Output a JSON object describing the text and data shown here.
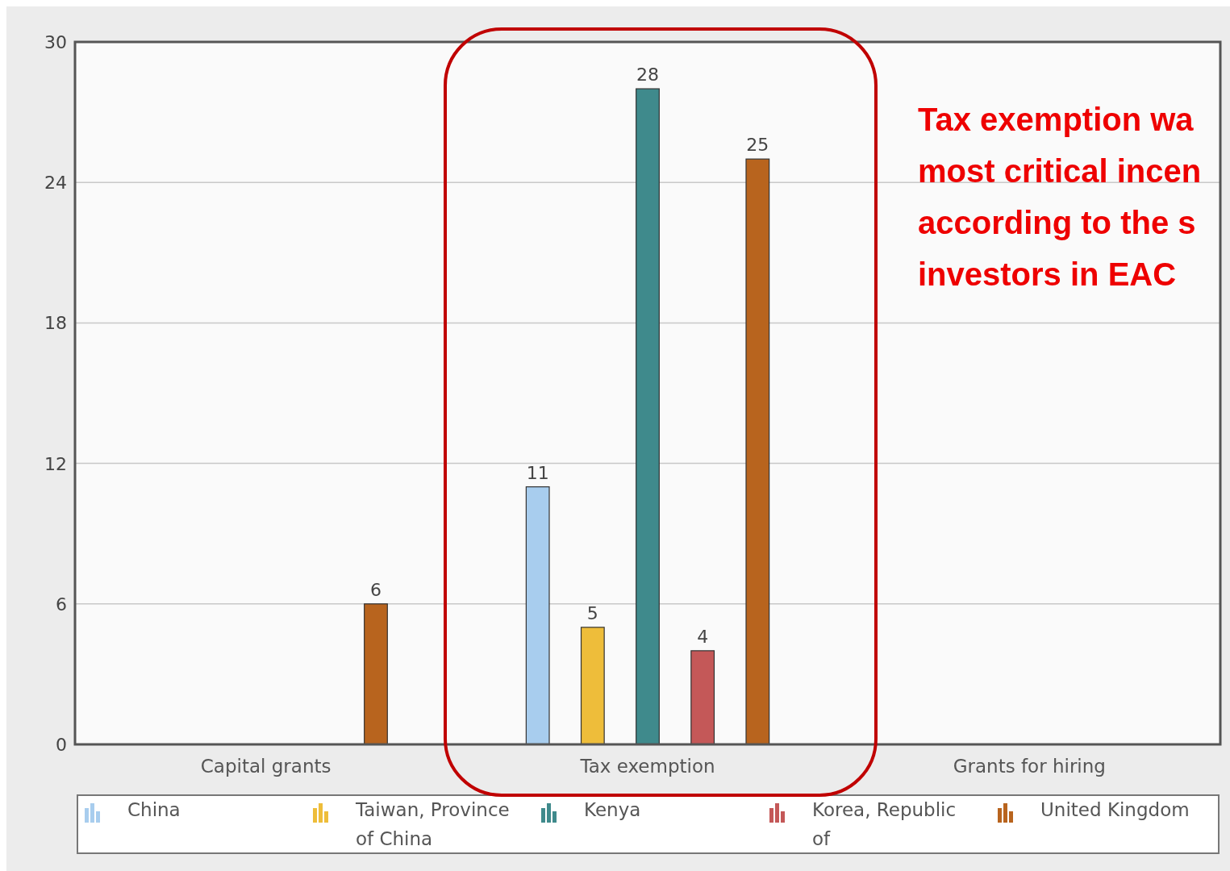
{
  "chart_data": {
    "type": "bar",
    "categories": [
      "Capital grants",
      "Tax exemption",
      "Grants for hiring"
    ],
    "series": [
      {
        "name": "China",
        "color": "#a8cdee",
        "values": [
          null,
          11,
          null
        ]
      },
      {
        "name": "Taiwan, Province of China",
        "color": "#eebd3a",
        "values": [
          null,
          5,
          null
        ]
      },
      {
        "name": "Kenya",
        "color": "#3f8a8c",
        "values": [
          null,
          28,
          null
        ]
      },
      {
        "name": "Korea, Republic of",
        "color": "#c45858",
        "values": [
          null,
          4,
          null
        ]
      },
      {
        "name": "United Kingdom",
        "color": "#b8641e",
        "values": [
          6,
          25,
          null
        ]
      }
    ],
    "ylim": [
      0,
      30
    ],
    "yticks": [
      0,
      6,
      12,
      18,
      24,
      30
    ],
    "grid": "y",
    "legend": "bottom",
    "data_labels": true,
    "annotations": [
      "Tax exemption wa\nmost critical incen\naccording to the s\ninvestors in EAC"
    ]
  }
}
